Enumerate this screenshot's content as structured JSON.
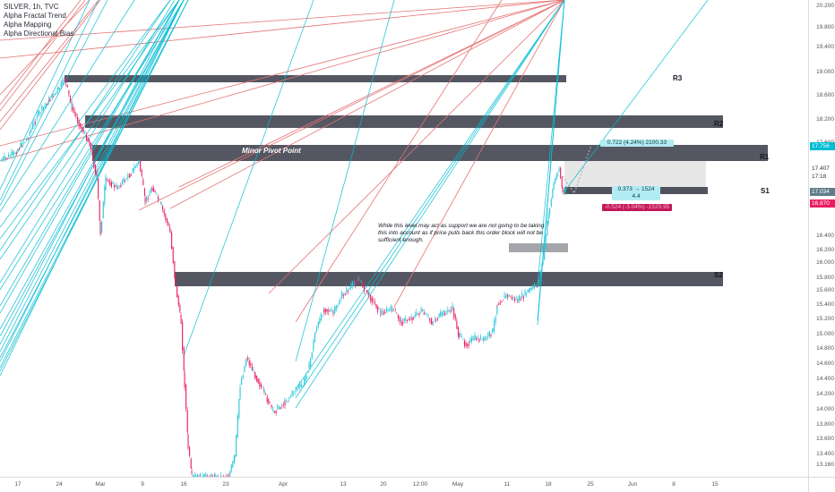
{
  "legend": {
    "symbol": "SILVER, 1h, TVC",
    "indicators": [
      "Alpha Fractal Trend",
      "Alpha Mapping",
      "Alpha Directional Bias"
    ]
  },
  "levels": {
    "r3": "R3",
    "r2": "R2",
    "r1": "R1",
    "s1": "S1",
    "s2": "S2",
    "minor_pivot": "Minor Pivot Point"
  },
  "annotation": {
    "note": "While this level may act as support we are not going to be taking this into account as if price pulls back this order block will not be sufficient enough."
  },
  "measures": {
    "upper": "0.722 (4.24%) 2100.33",
    "middle_line1": "0.373 → 1524",
    "middle_line2": "4.4",
    "lower": "-0.524 (-3.04%) -1520.95"
  },
  "price_axis": {
    "labels": [
      "20.200",
      "19.800",
      "19.400",
      "19.000",
      "18.600",
      "18.200",
      "17.800",
      "17.600",
      "17.200",
      "17.000",
      "16.800",
      "16.400",
      "16.200",
      "16.000",
      "15.800",
      "15.600",
      "15.400",
      "15.200",
      "15.000",
      "14.800",
      "14.600",
      "14.400",
      "14.200",
      "14.000",
      "13.800",
      "13.600",
      "13.400",
      "13.160"
    ],
    "tags": {
      "price_current": "17.756",
      "price_high": "17.407",
      "countdown": "17:18",
      "price_low": "17.034",
      "price_red": "16.870"
    }
  },
  "time_axis": {
    "labels": [
      "17",
      "24",
      "Mar",
      "9",
      "16",
      "23",
      "Apr",
      "13",
      "20",
      "12:00",
      "May",
      "11",
      "18",
      "25",
      "Jun",
      "8",
      "15"
    ]
  },
  "colors": {
    "up": "#26c6da",
    "down": "#e91e63",
    "resistance": "#e57373",
    "support": "#00bcd4",
    "zone": "#363a45",
    "tag_blue": "#00bcd4",
    "tag_red": "#e91e63"
  }
}
